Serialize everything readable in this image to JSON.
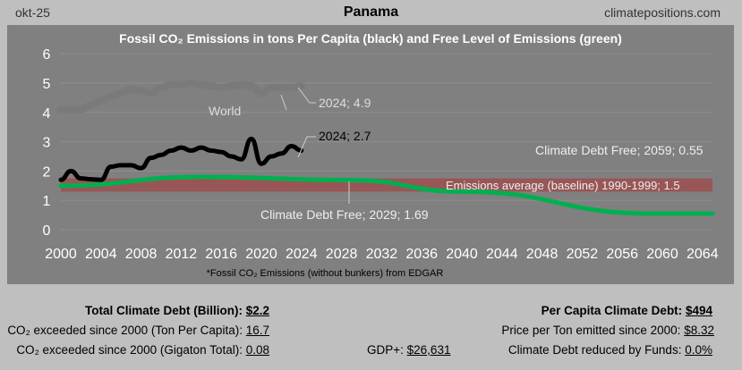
{
  "header": {
    "date": "okt-25",
    "title": "Panama",
    "site": "climatepositions.com"
  },
  "chart_data": {
    "type": "line",
    "title": "Fossil CO₂ Emissions in tons Per Capita (black) and Free Level of Emissions (green)",
    "footnote": "*Fossil CO₂ Emissions (without bunkers) from EDGAR",
    "xlim": [
      2000,
      2065
    ],
    "ylim": [
      0,
      6
    ],
    "x_ticks": [
      "2000",
      "2004",
      "2008",
      "2012",
      "2016",
      "2020",
      "2024",
      "2028",
      "2032",
      "2036",
      "2040",
      "2044",
      "2048",
      "2052",
      "2056",
      "2060",
      "2064"
    ],
    "y_ticks": [
      "0",
      "1",
      "2",
      "3",
      "4",
      "5",
      "6"
    ],
    "grid": true,
    "series": [
      {
        "name": "World",
        "color": "#7a7a7a",
        "x": [
          2000,
          2001,
          2002,
          2003,
          2004,
          2005,
          2006,
          2007,
          2008,
          2009,
          2010,
          2011,
          2012,
          2013,
          2014,
          2015,
          2016,
          2017,
          2018,
          2019,
          2020,
          2021,
          2022,
          2023,
          2024
        ],
        "values": [
          4.1,
          4.1,
          4.1,
          4.25,
          4.4,
          4.55,
          4.65,
          4.8,
          4.75,
          4.65,
          4.85,
          4.95,
          4.95,
          5.0,
          4.95,
          4.9,
          4.85,
          4.9,
          4.95,
          4.9,
          4.65,
          4.85,
          4.85,
          4.85,
          4.9
        ]
      },
      {
        "name": "Panama",
        "color": "#000000",
        "x": [
          2000,
          2001,
          2002,
          2003,
          2004,
          2005,
          2006,
          2007,
          2008,
          2009,
          2010,
          2011,
          2012,
          2013,
          2014,
          2015,
          2016,
          2017,
          2018,
          2019,
          2020,
          2021,
          2022,
          2023,
          2024
        ],
        "values": [
          1.7,
          2.0,
          1.75,
          1.72,
          1.7,
          2.15,
          2.2,
          2.2,
          2.1,
          2.45,
          2.55,
          2.7,
          2.8,
          2.7,
          2.8,
          2.7,
          2.65,
          2.5,
          2.4,
          3.1,
          2.25,
          2.5,
          2.6,
          2.85,
          2.7
        ]
      },
      {
        "name": "Free Level of Emissions",
        "color": "#00b050",
        "x": [
          2000,
          2014,
          2029,
          2040,
          2059,
          2065
        ],
        "values": [
          1.5,
          1.8,
          1.69,
          1.3,
          0.55,
          0.55
        ]
      }
    ],
    "baseline": {
      "value": 1.5,
      "band": [
        1.3,
        1.75
      ],
      "color": "#a04848"
    },
    "annotations": {
      "world_label": "World",
      "world_2024": "2024; 4.9",
      "panama_2024": "2024; 2.7",
      "debt_free_2059": "Climate Debt Free; 2059; 0.55",
      "baseline": "Emissions average (baseline) 1990-1999; 1.5",
      "debt_free_2029": "Climate Debt Free; 2029; 1.69"
    }
  },
  "stats": {
    "total_debt_label": "Total Climate Debt (Billion):",
    "total_debt_value": "$2.2",
    "exceeded_pc_label": "CO₂ exceeded since 2000 (Ton Per Capita):",
    "exceeded_pc_value": "16.7",
    "exceeded_gt_label": "CO₂ exceeded since 2000 (Gigaton Total):",
    "exceeded_gt_value": "0.08",
    "gdp_label": "GDP+:",
    "gdp_value": "$26,631",
    "per_capita_debt_label": "Per Capita Climate Debt:",
    "per_capita_debt_value": "$494",
    "price_label": "Price per Ton emitted since 2000:",
    "price_value": "$8.32",
    "funds_label": "Climate Debt reduced by Funds:",
    "funds_value": "0.0%"
  }
}
